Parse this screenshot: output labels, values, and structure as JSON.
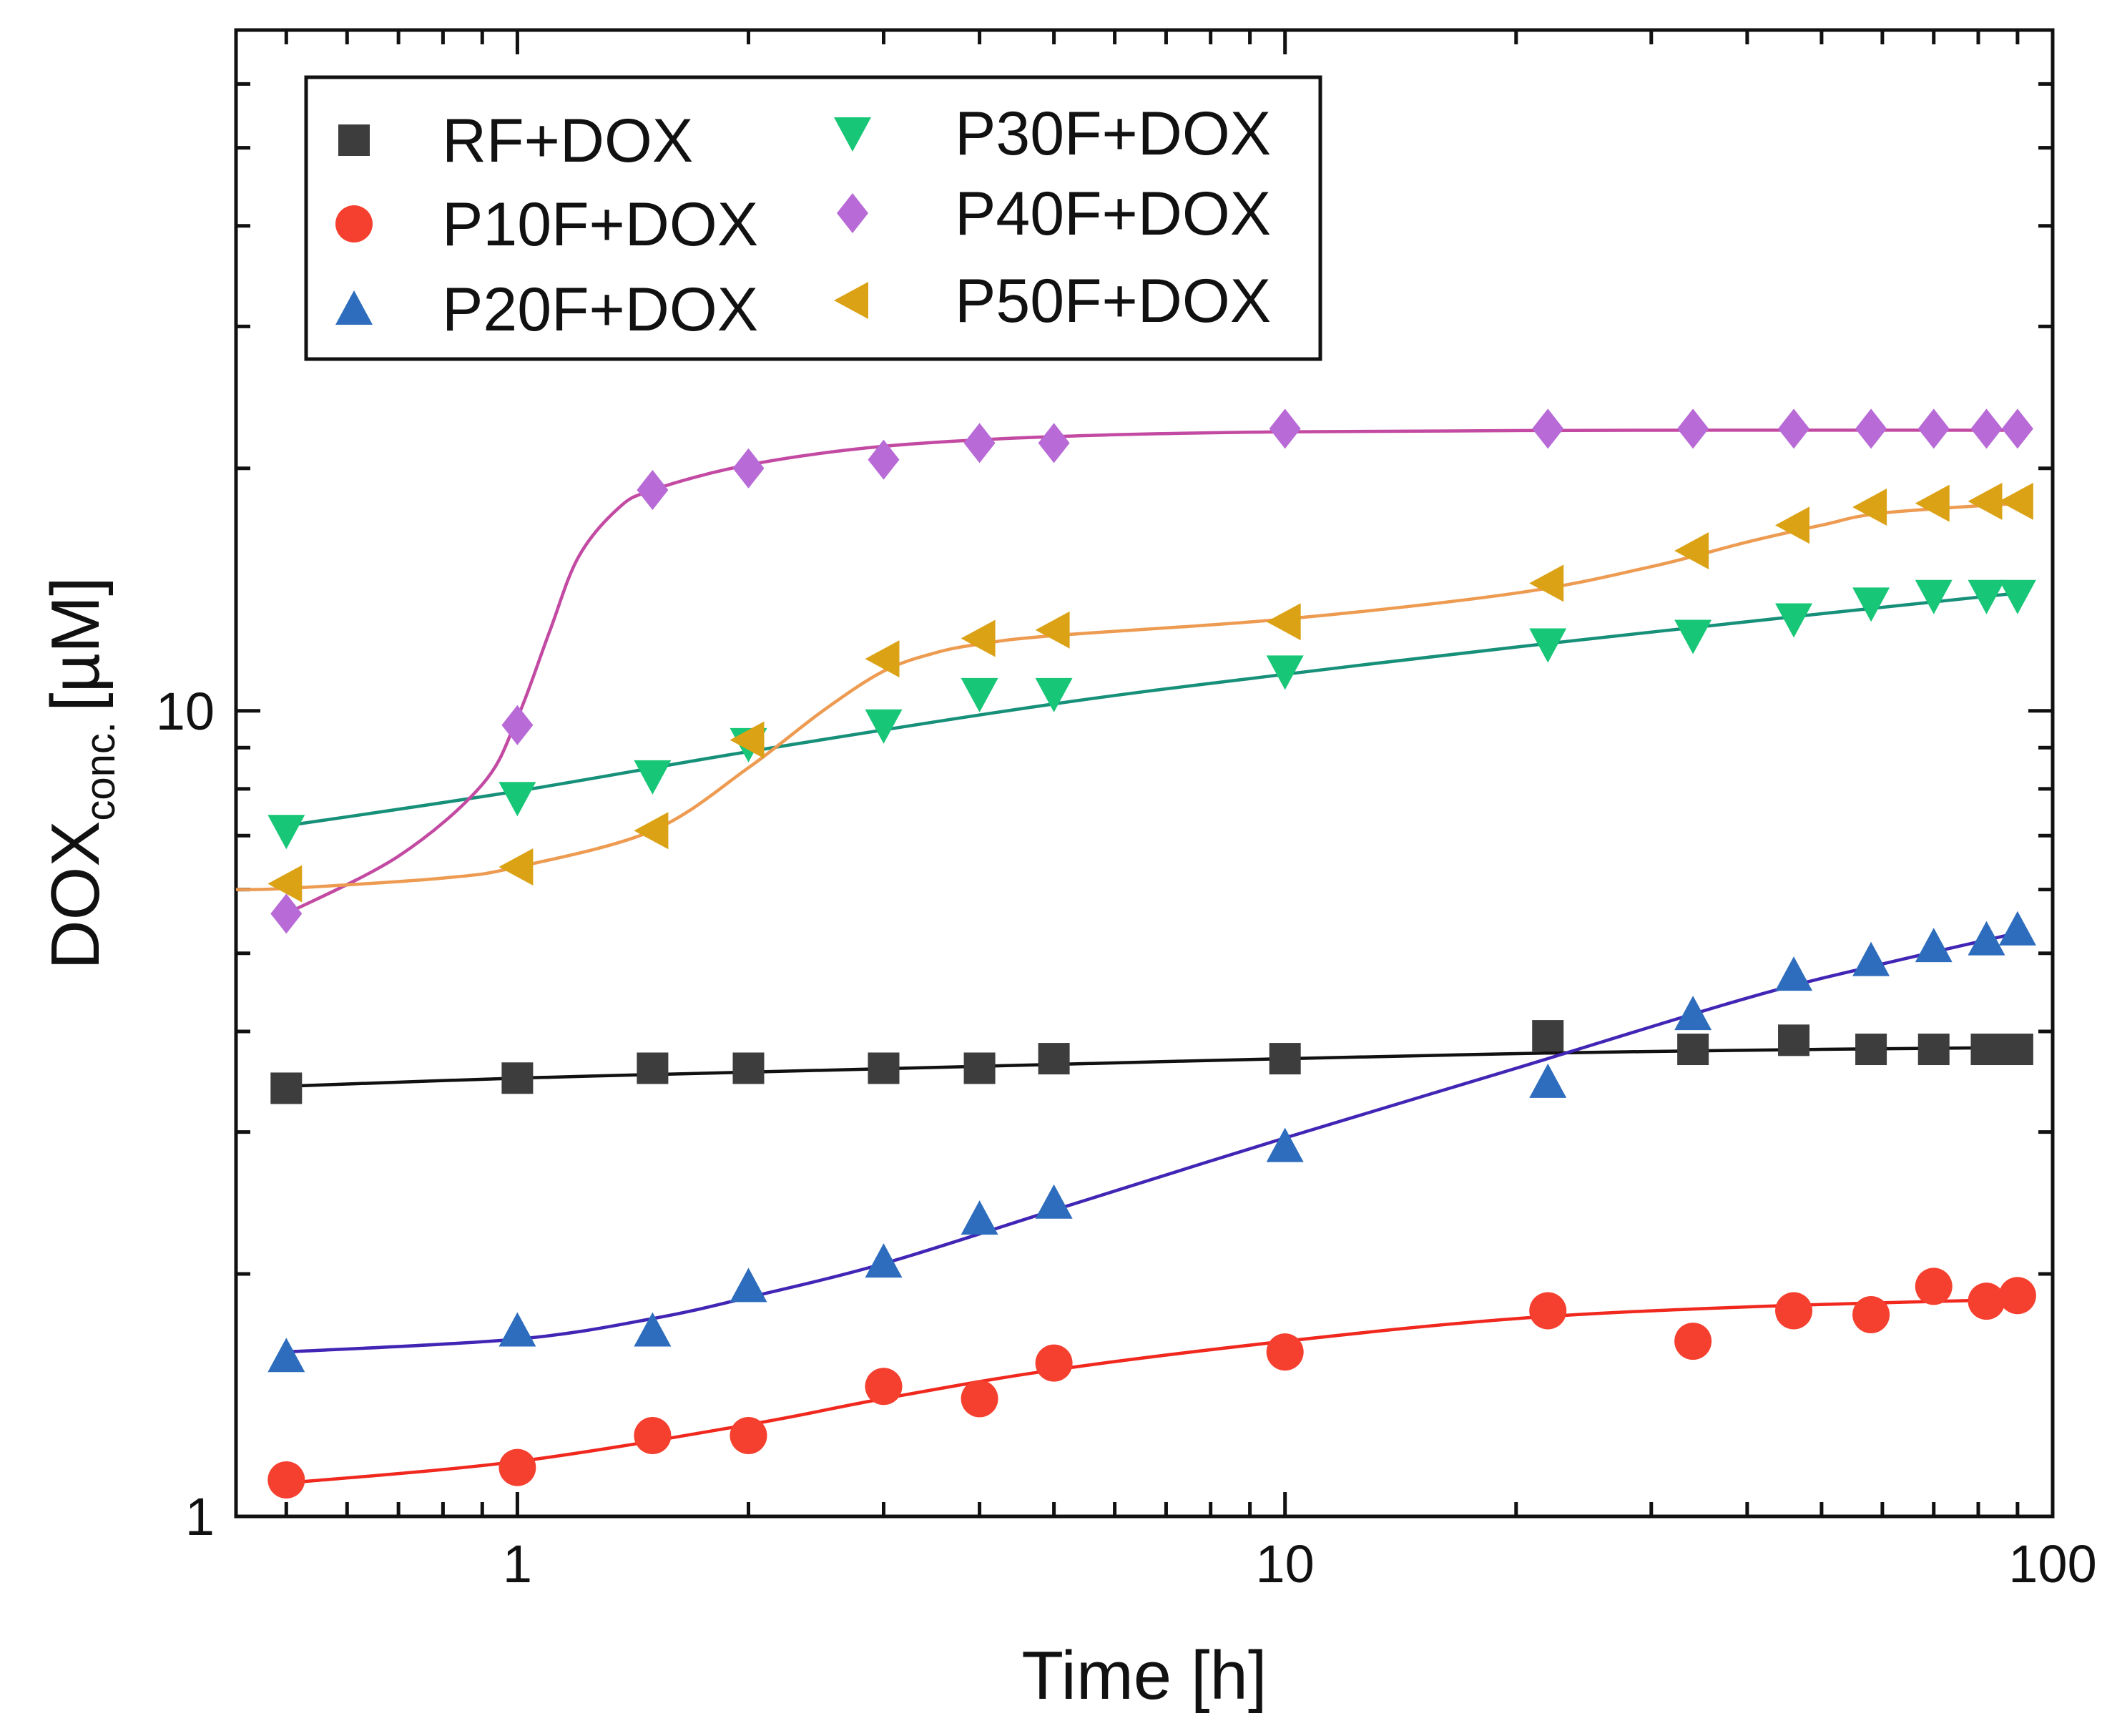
{
  "chart_data": {
    "type": "scatter",
    "title": "",
    "xlabel": "Time [h]",
    "ylabel": {
      "main": "DOX",
      "subscript": "conc.",
      "unit": "[µM]"
    },
    "xscale": "log",
    "yscale": "log",
    "xlim": [
      0.43,
      100
    ],
    "ylim": [
      1,
      70
    ],
    "x_ticks": [
      1,
      10,
      100
    ],
    "x_tick_labels": [
      "1",
      "10",
      "100"
    ],
    "y_ticks": [
      1,
      10
    ],
    "y_tick_labels": [
      "1",
      "10"
    ],
    "grid": false,
    "legend_position": "top-left",
    "series": [
      {
        "name": "RF+DOX",
        "marker": "square",
        "color": "#3d3d3d",
        "line_color": "#111111",
        "x": [
          0.5,
          1,
          1.5,
          2,
          3,
          4,
          5,
          10,
          22,
          34,
          46,
          58,
          70,
          82,
          90
        ],
        "y": [
          3.4,
          3.5,
          3.6,
          3.6,
          3.6,
          3.6,
          3.7,
          3.7,
          3.95,
          3.8,
          3.9,
          3.8,
          3.8,
          3.8,
          3.8
        ],
        "fit": {
          "x": [
            0.5,
            1,
            2,
            5,
            10,
            22,
            50,
            90
          ],
          "y": [
            3.42,
            3.5,
            3.56,
            3.64,
            3.7,
            3.76,
            3.8,
            3.82
          ]
        }
      },
      {
        "name": "P10F+DOX",
        "marker": "circle",
        "color": "#f5402f",
        "line_color": "#f0281e",
        "x": [
          0.5,
          1,
          1.5,
          2,
          3,
          4,
          5,
          10,
          22,
          34,
          46,
          58,
          70,
          82,
          90
        ],
        "y": [
          1.11,
          1.15,
          1.26,
          1.26,
          1.45,
          1.4,
          1.55,
          1.6,
          1.8,
          1.65,
          1.8,
          1.78,
          1.93,
          1.85,
          1.88
        ],
        "fit": {
          "x": [
            0.5,
            1,
            2,
            3,
            5,
            10,
            20,
            40,
            90
          ],
          "y": [
            1.1,
            1.17,
            1.3,
            1.4,
            1.52,
            1.65,
            1.76,
            1.82,
            1.86
          ]
        }
      },
      {
        "name": "P20F+DOX",
        "marker": "triangle-up",
        "color": "#2e6dbd",
        "line_color": "#4125b5",
        "x": [
          0.5,
          1,
          1.5,
          2,
          3,
          4,
          5,
          10,
          22,
          34,
          46,
          58,
          70,
          82,
          90
        ],
        "y": [
          1.58,
          1.7,
          1.7,
          1.93,
          2.07,
          2.34,
          2.45,
          2.88,
          3.46,
          4.2,
          4.7,
          4.9,
          5.1,
          5.2,
          5.35
        ],
        "fit": {
          "x": [
            0.5,
            1,
            1.5,
            2,
            3,
            5,
            10,
            20,
            40,
            60,
            90
          ],
          "y": [
            1.6,
            1.66,
            1.76,
            1.87,
            2.06,
            2.4,
            2.95,
            3.6,
            4.4,
            4.85,
            5.3
          ]
        }
      },
      {
        "name": "P30F+DOX",
        "marker": "triangle-down",
        "color": "#17c777",
        "line_color": "#17907a",
        "x": [
          0.5,
          1,
          1.5,
          2,
          3,
          4,
          5,
          10,
          22,
          34,
          46,
          58,
          70,
          82,
          90
        ],
        "y": [
          7.1,
          7.8,
          8.3,
          9.1,
          9.6,
          10.5,
          10.5,
          11.2,
          12.1,
          12.4,
          13.0,
          13.6,
          13.9,
          13.9,
          13.9
        ],
        "fit": {
          "x": [
            0.5,
            1,
            2,
            5,
            10,
            20,
            50,
            90
          ],
          "y": [
            7.2,
            7.95,
            8.9,
            10.2,
            11.1,
            12.0,
            13.2,
            14.0
          ]
        }
      },
      {
        "name": "P40F+DOX",
        "marker": "diamond",
        "color": "#b86ad6",
        "line_color": "#c34aa2",
        "x": [
          0.5,
          1,
          1.5,
          2,
          3,
          4,
          5,
          10,
          22,
          34,
          46,
          58,
          70,
          82,
          90
        ],
        "y": [
          5.6,
          9.6,
          18.8,
          20.0,
          20.5,
          21.5,
          21.5,
          22.4,
          22.4,
          22.4,
          22.4,
          22.4,
          22.4,
          22.4,
          22.4
        ],
        "fit": {
          "x": [
            0.5,
            0.7,
            0.9,
            1,
            1.1,
            1.2,
            1.35,
            1.5,
            2,
            3,
            5,
            10,
            30,
            90
          ],
          "y": [
            5.6,
            6.6,
            8.1,
            9.8,
            12.5,
            15.5,
            17.8,
            18.8,
            20.2,
            21.3,
            21.9,
            22.2,
            22.3,
            22.3
          ]
        }
      },
      {
        "name": "P50F+DOX",
        "marker": "triangle-left",
        "color": "#dba216",
        "line_color": "#ee9b52",
        "x": [
          0.5,
          1,
          1.5,
          2,
          3,
          4,
          5,
          10,
          22,
          34,
          46,
          58,
          70,
          82,
          90
        ],
        "y": [
          6.1,
          6.4,
          7.1,
          9.2,
          11.6,
          12.3,
          12.6,
          12.9,
          14.4,
          15.8,
          17.0,
          17.9,
          18.1,
          18.2,
          18.2
        ],
        "fit": {
          "x": [
            0.43,
            0.5,
            0.8,
            1,
            1.5,
            2,
            2.5,
            3,
            3.5,
            4,
            5,
            10,
            20,
            30,
            40,
            50,
            60,
            90
          ],
          "y": [
            6.0,
            6.02,
            6.2,
            6.4,
            7.1,
            8.5,
            10.0,
            11.2,
            11.8,
            12.1,
            12.4,
            13.0,
            14.0,
            15.1,
            16.2,
            17.0,
            17.6,
            18.1
          ]
        }
      }
    ]
  }
}
